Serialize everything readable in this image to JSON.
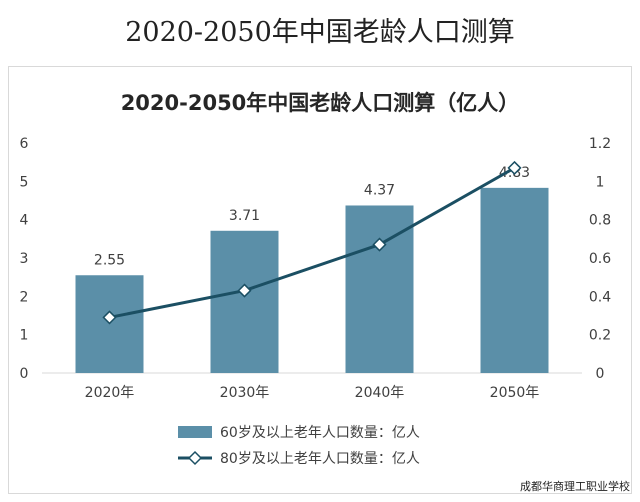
{
  "outer_title": "2020-2050年中国老龄人口测算",
  "watermark": "成都华商理工职业学校",
  "colors": {
    "bar": "#5b8fa8",
    "line": "#1b4f63",
    "marker_fill": "#ffffff",
    "axis_text": "#404040",
    "gridline": "#d9d9d9"
  },
  "chart_data": {
    "type": "bar+line",
    "title": "2020-2050年中国老龄人口测算（亿人）",
    "categories": [
      "2020年",
      "2030年",
      "2040年",
      "2050年"
    ],
    "series": [
      {
        "name": "60岁及以上老年人口数量：亿人",
        "type": "bar",
        "axis": "left",
        "values": [
          2.55,
          3.71,
          4.37,
          4.83
        ],
        "labels": [
          "2.55",
          "3.71",
          "4.37",
          "4.83"
        ]
      },
      {
        "name": "80岁及以上老年人口数量：亿人",
        "type": "line",
        "axis": "right",
        "values": [
          0.29,
          0.43,
          0.67,
          1.07
        ]
      }
    ],
    "y_left": {
      "min": 0,
      "max": 6,
      "ticks": [
        "0",
        "1",
        "2",
        "3",
        "4",
        "5",
        "6"
      ]
    },
    "y_right": {
      "min": 0,
      "max": 1.2,
      "ticks": [
        "0",
        "0.2",
        "0.4",
        "0.6",
        "0.8",
        "1",
        "1.2"
      ]
    },
    "legend_position": "bottom"
  }
}
